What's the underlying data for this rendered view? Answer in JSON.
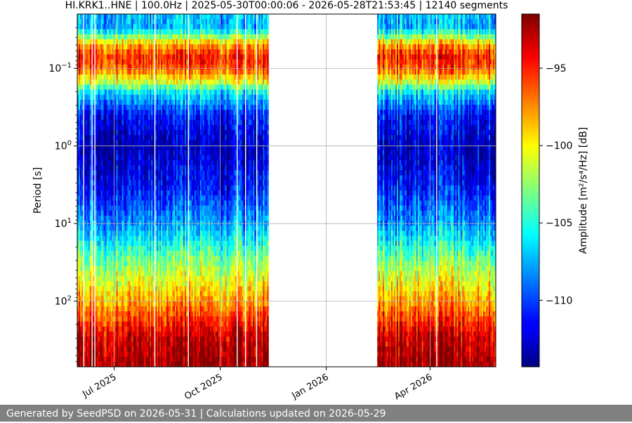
{
  "chart_data": {
    "type": "heatmap",
    "title": "HI.KRK1..HNE | 100.0Hz | 2025-05-30T00:00:06 - 2026-05-28T21:53:45 | 12140 segments",
    "xlabel": "",
    "ylabel": "Period [s]",
    "y_scale": "log",
    "ylim": [
      0.02,
      700
    ],
    "xlim": [
      "2025-05-30",
      "2026-05-28"
    ],
    "x_ticks": [
      {
        "date": "2025-07-01",
        "label": "Jul 2025"
      },
      {
        "date": "2025-10-01",
        "label": "Oct 2025"
      },
      {
        "date": "2026-01-01",
        "label": "Jan 2026"
      },
      {
        "date": "2026-04-01",
        "label": "Apr 2026"
      }
    ],
    "y_ticks": [
      {
        "value": 0.1,
        "label": "10",
        "exp": "−1"
      },
      {
        "value": 1,
        "label": "10",
        "exp": "0"
      },
      {
        "value": 10,
        "label": "10",
        "exp": "1"
      },
      {
        "value": 100,
        "label": "10",
        "exp": "2"
      }
    ],
    "grid": true,
    "data_gaps": [
      [
        "2025-11-12",
        "2026-02-14"
      ]
    ],
    "colormap": "jet",
    "colorbar": {
      "label": "Amplitude [m²/s⁴/Hz] [dB]",
      "range": [
        -114.3,
        -91.5
      ],
      "ticks": [
        -95,
        -100,
        -105,
        -110
      ]
    },
    "period_amplitude_profile": [
      {
        "period": 0.02,
        "db": -107
      },
      {
        "period": 0.03,
        "db": -107.5
      },
      {
        "period": 0.05,
        "db": -98
      },
      {
        "period": 0.07,
        "db": -95
      },
      {
        "period": 0.1,
        "db": -96
      },
      {
        "period": 0.15,
        "db": -101
      },
      {
        "period": 0.2,
        "db": -106
      },
      {
        "period": 0.4,
        "db": -111
      },
      {
        "period": 1,
        "db": -113
      },
      {
        "period": 3,
        "db": -111.5
      },
      {
        "period": 10,
        "db": -108
      },
      {
        "period": 30,
        "db": -103
      },
      {
        "period": 100,
        "db": -98
      },
      {
        "period": 300,
        "db": -93
      },
      {
        "period": 700,
        "db": -92
      }
    ]
  },
  "footer": {
    "text": "Generated by SeedPSD on 2026-05-31 | Calculations updated on 2026-05-29"
  }
}
